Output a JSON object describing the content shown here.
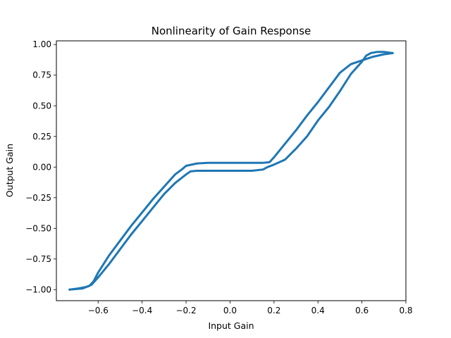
{
  "chart_data": {
    "type": "line",
    "title": "Nonlinearity of Gain Response",
    "xlabel": "Input Gain",
    "ylabel": "Output Gain",
    "xlim": [
      -0.79,
      0.8
    ],
    "ylim": [
      -1.09,
      1.03
    ],
    "xticks": [
      -0.6,
      -0.4,
      -0.2,
      0.0,
      0.2,
      0.4,
      0.6,
      0.8
    ],
    "xtick_labels": [
      "−0.6",
      "−0.4",
      "−0.2",
      "0.0",
      "0.2",
      "0.4",
      "0.6",
      "0.8"
    ],
    "yticks": [
      -1.0,
      -0.75,
      -0.5,
      -0.25,
      0.0,
      0.25,
      0.5,
      0.75,
      1.0
    ],
    "ytick_labels": [
      "−1.00",
      "−0.75",
      "−0.50",
      "−0.25",
      "0.00",
      "0.25",
      "0.50",
      "0.75",
      "1.00"
    ],
    "grid": false,
    "legend": "none",
    "color": "#1f77b4",
    "series": [
      {
        "x": [
          -0.73,
          -0.69,
          -0.66,
          -0.64,
          -0.62,
          -0.6,
          -0.55,
          -0.5,
          -0.45,
          -0.4,
          -0.35,
          -0.3,
          -0.25,
          -0.22,
          -0.2,
          -0.15,
          -0.1,
          0.0,
          0.1,
          0.15,
          0.18,
          0.2,
          0.25,
          0.3,
          0.35,
          0.4,
          0.45,
          0.5,
          0.55,
          0.6,
          0.65,
          0.7,
          0.74
        ],
        "y": [
          -1.0,
          -0.99,
          -0.98,
          -0.97,
          -0.93,
          -0.86,
          -0.72,
          -0.6,
          -0.48,
          -0.37,
          -0.26,
          -0.16,
          -0.06,
          -0.02,
          0.01,
          0.03,
          0.035,
          0.035,
          0.035,
          0.035,
          0.04,
          0.08,
          0.19,
          0.3,
          0.42,
          0.53,
          0.65,
          0.77,
          0.84,
          0.87,
          0.9,
          0.92,
          0.93
        ]
      },
      {
        "x": [
          0.74,
          0.7,
          0.67,
          0.64,
          0.62,
          0.6,
          0.55,
          0.5,
          0.45,
          0.4,
          0.35,
          0.3,
          0.25,
          0.2,
          0.17,
          0.15,
          0.1,
          0.0,
          -0.1,
          -0.15,
          -0.18,
          -0.2,
          -0.25,
          -0.3,
          -0.35,
          -0.4,
          -0.45,
          -0.5,
          -0.55,
          -0.6,
          -0.63,
          -0.67,
          -0.73
        ],
        "y": [
          0.93,
          0.94,
          0.94,
          0.93,
          0.91,
          0.86,
          0.76,
          0.62,
          0.49,
          0.38,
          0.25,
          0.15,
          0.06,
          0.02,
          0.0,
          -0.02,
          -0.03,
          -0.03,
          -0.03,
          -0.03,
          -0.035,
          -0.06,
          -0.13,
          -0.22,
          -0.33,
          -0.44,
          -0.55,
          -0.67,
          -0.79,
          -0.9,
          -0.96,
          -0.99,
          -1.0
        ]
      }
    ]
  }
}
